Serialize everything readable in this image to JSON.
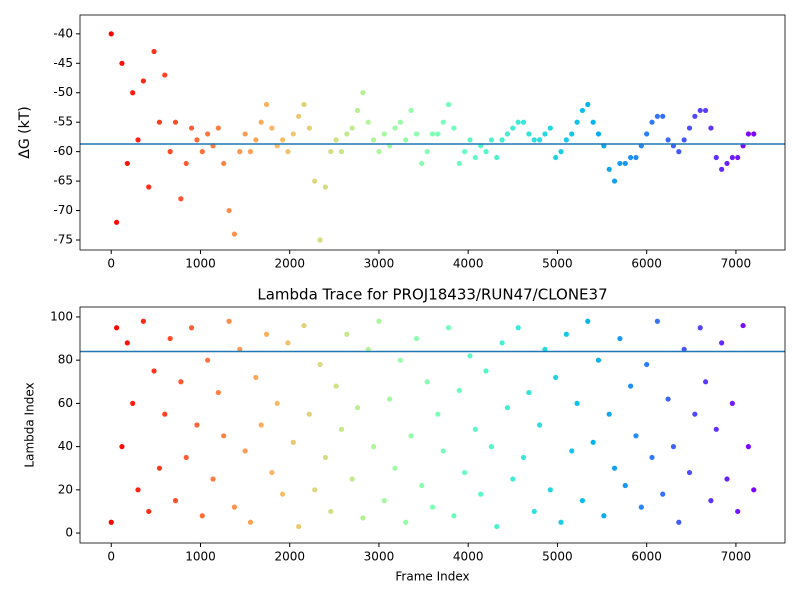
{
  "chart_data": [
    {
      "type": "scatter",
      "ylabel": "ΔG (kT)",
      "x": [
        0,
        60,
        120,
        180,
        240,
        300,
        360,
        420,
        480,
        540,
        600,
        660,
        720,
        780,
        840,
        900,
        960,
        1020,
        1080,
        1140,
        1200,
        1260,
        1320,
        1380,
        1440,
        1500,
        1560,
        1620,
        1680,
        1740,
        1800,
        1860,
        1920,
        1980,
        2040,
        2100,
        2160,
        2220,
        2280,
        2340,
        2400,
        2460,
        2520,
        2580,
        2640,
        2700,
        2760,
        2820,
        2880,
        2940,
        3000,
        3060,
        3120,
        3180,
        3240,
        3300,
        3360,
        3420,
        3480,
        3540,
        3600,
        3660,
        3720,
        3780,
        3840,
        3900,
        3960,
        4020,
        4080,
        4140,
        4200,
        4260,
        4320,
        4380,
        4440,
        4500,
        4560,
        4620,
        4680,
        4740,
        4800,
        4860,
        4920,
        4980,
        5040,
        5100,
        5160,
        5220,
        5280,
        5340,
        5400,
        5460,
        5520,
        5580,
        5640,
        5700,
        5760,
        5820,
        5880,
        5940,
        6000,
        6060,
        6120,
        6180,
        6240,
        6300,
        6360,
        6420,
        6480,
        6540,
        6600,
        6660,
        6720,
        6780,
        6840,
        6900,
        6960,
        7020,
        7080,
        7140,
        7200
      ],
      "y": [
        -40,
        -72,
        -45,
        -62,
        -50,
        -58,
        -48,
        -66,
        -43,
        -55,
        -47,
        -60,
        -55,
        -68,
        -62,
        -56,
        -58,
        -60,
        -57,
        -59,
        -56,
        -62,
        -70,
        -74,
        -60,
        -57,
        -60,
        -58,
        -55,
        -52,
        -56,
        -59,
        -58,
        -60,
        -57,
        -54,
        -52,
        -56,
        -65,
        -75,
        -66,
        -60,
        -58,
        -60,
        -57,
        -56,
        -53,
        -50,
        -55,
        -58,
        -60,
        -57,
        -59,
        -56,
        -55,
        -58,
        -53,
        -57,
        -62,
        -60,
        -57,
        -57,
        -55,
        -52,
        -56,
        -62,
        -60,
        -58,
        -61,
        -59,
        -60,
        -58,
        -61,
        -58,
        -57,
        -56,
        -55,
        -55,
        -57,
        -58,
        -58,
        -57,
        -56,
        -61,
        -60,
        -58,
        -57,
        -55,
        -53,
        -52,
        -55,
        -57,
        -59,
        -63,
        -65,
        -62,
        -62,
        -61,
        -61,
        -59,
        -57,
        -55,
        -54,
        -54,
        -58,
        -59,
        -60,
        -58,
        -56,
        -54,
        -53,
        -53,
        -56,
        -61,
        -63,
        -62,
        -61,
        -61,
        -59,
        -57,
        -57
      ],
      "xlim": [
        -350,
        7550
      ],
      "ylim": [
        -76.7,
        -36.8
      ],
      "xticks": [
        0,
        1000,
        2000,
        3000,
        4000,
        5000,
        6000,
        7000
      ],
      "yticks": [
        -75,
        -70,
        -65,
        -60,
        -55,
        -50,
        -45,
        -40
      ],
      "hline": -58.7,
      "hline_color": "#1f77b4",
      "colormap": "rainbow",
      "colormap_reversed": true
    },
    {
      "type": "scatter",
      "title": "Lambda Trace for PROJ18433/RUN47/CLONE37",
      "xlabel": "Frame Index",
      "ylabel": "Lambda Index",
      "x": [
        0,
        60,
        120,
        180,
        240,
        300,
        360,
        420,
        480,
        540,
        600,
        660,
        720,
        780,
        840,
        900,
        960,
        1020,
        1080,
        1140,
        1200,
        1260,
        1320,
        1380,
        1440,
        1500,
        1560,
        1620,
        1680,
        1740,
        1800,
        1860,
        1920,
        1980,
        2040,
        2100,
        2160,
        2220,
        2280,
        2340,
        2400,
        2460,
        2520,
        2580,
        2640,
        2700,
        2760,
        2820,
        2880,
        2940,
        3000,
        3060,
        3120,
        3180,
        3240,
        3300,
        3360,
        3420,
        3480,
        3540,
        3600,
        3660,
        3720,
        3780,
        3840,
        3900,
        3960,
        4020,
        4080,
        4140,
        4200,
        4260,
        4320,
        4380,
        4440,
        4500,
        4560,
        4620,
        4680,
        4740,
        4800,
        4860,
        4920,
        4980,
        5040,
        5100,
        5160,
        5220,
        5280,
        5340,
        5400,
        5460,
        5520,
        5580,
        5640,
        5700,
        5760,
        5820,
        5880,
        5940,
        6000,
        6060,
        6120,
        6180,
        6240,
        6300,
        6360,
        6420,
        6480,
        6540,
        6600,
        6660,
        6720,
        6780,
        6840,
        6900,
        6960,
        7020,
        7080,
        7140,
        7200
      ],
      "y": [
        5,
        95,
        40,
        88,
        60,
        20,
        98,
        10,
        75,
        30,
        55,
        90,
        15,
        70,
        35,
        95,
        50,
        8,
        80,
        25,
        65,
        45,
        98,
        12,
        85,
        38,
        5,
        72,
        50,
        92,
        28,
        60,
        18,
        88,
        42,
        3,
        96,
        55,
        20,
        78,
        35,
        10,
        68,
        48,
        92,
        25,
        58,
        7,
        85,
        40,
        98,
        15,
        62,
        30,
        80,
        5,
        45,
        90,
        22,
        70,
        12,
        55,
        38,
        95,
        8,
        66,
        28,
        82,
        48,
        18,
        75,
        40,
        3,
        88,
        58,
        25,
        95,
        35,
        65,
        10,
        50,
        85,
        20,
        72,
        5,
        92,
        38,
        60,
        15,
        98,
        42,
        80,
        8,
        55,
        30,
        90,
        22,
        68,
        45,
        12,
        78,
        35,
        98,
        18,
        62,
        40,
        5,
        85,
        28,
        55,
        95,
        70,
        15,
        48,
        88,
        25,
        60,
        10,
        96,
        40,
        20
      ],
      "xlim": [
        -350,
        7550
      ],
      "ylim": [
        -4.6,
        104.6
      ],
      "xticks": [
        0,
        1000,
        2000,
        3000,
        4000,
        5000,
        6000,
        7000
      ],
      "yticks": [
        0,
        20,
        40,
        60,
        80,
        100
      ],
      "hline": 84,
      "hline_color": "#1f77b4",
      "colormap": "rainbow",
      "colormap_reversed": true
    }
  ]
}
